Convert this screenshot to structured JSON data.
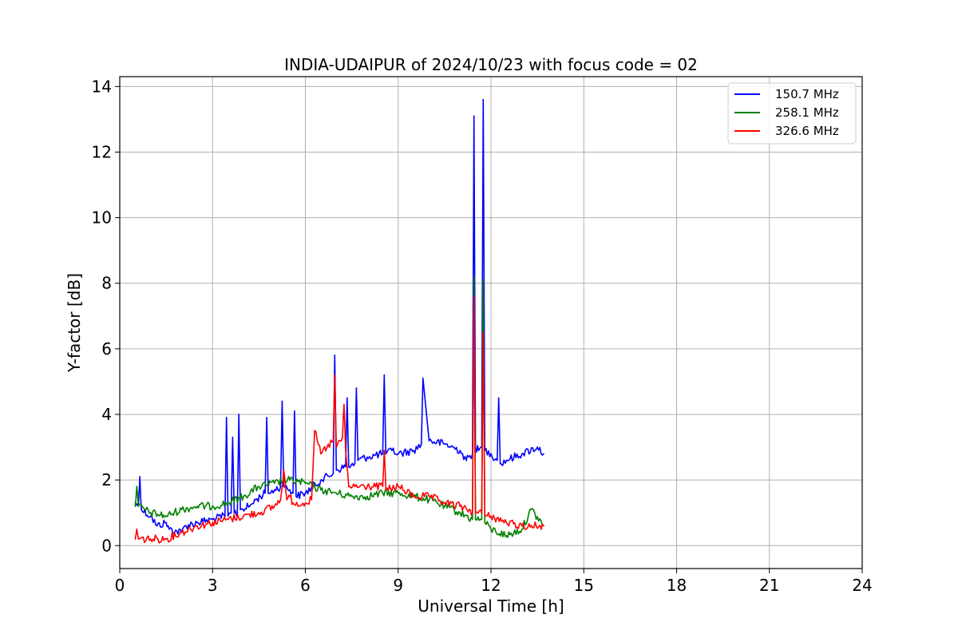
{
  "chart_data": {
    "type": "line",
    "title": "INDIA-UDAIPUR of 2024/10/23 with focus code = 02",
    "xlabel": "Universal Time [h]",
    "ylabel": "Y-factor [dB]",
    "xlim": [
      0,
      24
    ],
    "ylim": [
      -0.7,
      14.3
    ],
    "xticks": [
      0,
      3,
      6,
      9,
      12,
      15,
      18,
      21,
      24
    ],
    "yticks": [
      0,
      2,
      4,
      6,
      8,
      10,
      12,
      14
    ],
    "xtick_labels": [
      "0",
      "3",
      "6",
      "9",
      "12",
      "15",
      "18",
      "21",
      "24"
    ],
    "ytick_labels": [
      "0",
      "2",
      "4",
      "6",
      "8",
      "10",
      "12",
      "14"
    ],
    "grid": true,
    "legend_position": "top-right",
    "series": [
      {
        "name": "150.7 MHz",
        "color": "#0000ff",
        "x": [
          0.5,
          0.6,
          0.65,
          0.7,
          1.0,
          1.2,
          1.5,
          1.6,
          2.0,
          2.1,
          2.5,
          3.0,
          3.4,
          3.45,
          3.5,
          3.6,
          3.65,
          3.7,
          3.8,
          3.85,
          3.9,
          4.2,
          4.4,
          4.7,
          4.75,
          4.8,
          5.0,
          5.2,
          5.25,
          5.3,
          5.5,
          5.6,
          5.65,
          5.7,
          6.0,
          6.5,
          6.9,
          6.95,
          7.0,
          7.3,
          7.35,
          7.4,
          7.6,
          7.65,
          7.7,
          8.0,
          8.5,
          8.55,
          8.6,
          8.8,
          9.0,
          9.5,
          9.75,
          9.8,
          10.0,
          10.5,
          11.0,
          11.2,
          11.4,
          11.45,
          11.5,
          11.6,
          11.7,
          11.75,
          11.8,
          12.0,
          12.2,
          12.25,
          12.3,
          12.5,
          13.0,
          13.5,
          13.7
        ],
        "y": [
          1.3,
          1.2,
          2.1,
          1.1,
          0.9,
          0.6,
          0.7,
          0.5,
          0.4,
          0.6,
          0.7,
          0.8,
          0.9,
          3.9,
          0.9,
          1.0,
          3.3,
          1.0,
          1.0,
          4.0,
          1.1,
          1.2,
          1.4,
          1.6,
          3.9,
          1.6,
          1.7,
          1.8,
          4.4,
          1.8,
          1.7,
          1.6,
          4.1,
          1.5,
          1.6,
          2.0,
          2.2,
          5.8,
          2.3,
          2.4,
          4.5,
          2.4,
          2.5,
          4.8,
          2.6,
          2.7,
          2.8,
          5.2,
          2.8,
          2.9,
          2.8,
          2.9,
          3.1,
          5.1,
          3.2,
          3.1,
          2.9,
          2.6,
          2.8,
          13.1,
          3.0,
          2.9,
          3.0,
          13.6,
          2.9,
          2.8,
          2.6,
          4.5,
          2.5,
          2.6,
          2.8,
          3.0,
          2.8
        ]
      },
      {
        "name": "258.1 MHz",
        "color": "#008000",
        "x": [
          0.5,
          0.55,
          0.6,
          1.0,
          1.5,
          2.0,
          2.5,
          3.0,
          3.5,
          4.0,
          4.5,
          5.0,
          5.5,
          6.0,
          6.5,
          7.0,
          7.5,
          8.0,
          8.5,
          9.0,
          9.5,
          10.0,
          10.5,
          11.0,
          11.4,
          11.45,
          11.5,
          11.7,
          11.75,
          11.8,
          12.0,
          12.5,
          13.0,
          13.3,
          13.7
        ],
        "y": [
          1.2,
          1.8,
          1.2,
          1.0,
          0.9,
          1.1,
          1.2,
          1.2,
          1.3,
          1.5,
          1.8,
          1.9,
          2.0,
          1.9,
          1.7,
          1.6,
          1.5,
          1.5,
          1.6,
          1.6,
          1.5,
          1.4,
          1.2,
          1.0,
          0.8,
          8.2,
          0.8,
          0.8,
          8.1,
          0.7,
          0.5,
          0.3,
          0.5,
          1.1,
          0.6
        ]
      },
      {
        "name": "326.6 MHz",
        "color": "#ff0000",
        "x": [
          0.5,
          0.55,
          0.6,
          1.0,
          1.5,
          2.0,
          2.5,
          3.0,
          3.5,
          4.0,
          4.5,
          5.0,
          5.2,
          5.3,
          5.4,
          5.5,
          5.6,
          6.0,
          6.2,
          6.3,
          6.5,
          6.7,
          6.9,
          6.95,
          7.0,
          7.2,
          7.25,
          7.3,
          7.4,
          7.6,
          8.0,
          8.5,
          8.55,
          8.6,
          9.0,
          9.5,
          10.0,
          10.5,
          11.0,
          11.3,
          11.4,
          11.45,
          11.5,
          11.7,
          11.75,
          11.8,
          12.0,
          12.5,
          13.0,
          13.7
        ],
        "y": [
          0.2,
          0.5,
          0.2,
          0.2,
          0.2,
          0.4,
          0.6,
          0.7,
          0.8,
          0.9,
          1.0,
          1.2,
          1.4,
          2.3,
          1.4,
          1.5,
          1.3,
          1.3,
          1.4,
          3.5,
          2.8,
          3.0,
          3.2,
          5.2,
          3.0,
          3.3,
          4.3,
          2.9,
          1.8,
          1.8,
          1.8,
          1.8,
          2.9,
          1.7,
          1.8,
          1.5,
          1.5,
          1.3,
          1.2,
          1.1,
          1.0,
          7.6,
          1.0,
          1.0,
          6.5,
          0.9,
          0.9,
          0.7,
          0.6,
          0.6
        ]
      }
    ]
  }
}
